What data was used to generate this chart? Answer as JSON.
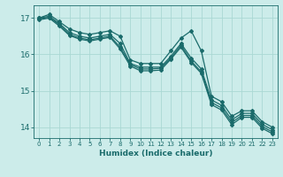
{
  "xlabel": "Humidex (Indice chaleur)",
  "ylabel": "",
  "background_color": "#ccecea",
  "grid_color": "#aad8d4",
  "line_color": "#1a6b6b",
  "marker": "D",
  "markersize": 2,
  "linewidth": 0.9,
  "ylim": [
    13.7,
    17.35
  ],
  "xlim": [
    -0.5,
    23.5
  ],
  "yticks": [
    14,
    15,
    16,
    17
  ],
  "xticks": [
    0,
    1,
    2,
    3,
    4,
    5,
    6,
    7,
    8,
    9,
    10,
    11,
    12,
    13,
    14,
    15,
    16,
    17,
    18,
    19,
    20,
    21,
    22,
    23
  ],
  "series": [
    [
      17.0,
      17.1,
      16.9,
      16.7,
      16.6,
      16.55,
      16.6,
      16.65,
      16.5,
      15.85,
      15.75,
      15.75,
      15.75,
      16.1,
      16.45,
      16.65,
      16.1,
      14.85,
      14.7,
      14.3,
      14.45,
      14.45,
      14.15,
      14.0
    ],
    [
      17.0,
      17.05,
      16.85,
      16.6,
      16.5,
      16.45,
      16.5,
      16.55,
      16.3,
      15.75,
      15.65,
      15.65,
      15.65,
      15.95,
      16.3,
      15.9,
      15.6,
      14.75,
      14.6,
      14.2,
      14.38,
      14.38,
      14.08,
      13.93
    ],
    [
      16.98,
      17.02,
      16.82,
      16.55,
      16.45,
      16.4,
      16.45,
      16.5,
      16.2,
      15.72,
      15.6,
      15.6,
      15.62,
      15.9,
      16.25,
      15.82,
      15.52,
      14.68,
      14.53,
      14.13,
      14.32,
      14.32,
      14.02,
      13.87
    ],
    [
      16.95,
      17.0,
      16.78,
      16.52,
      16.42,
      16.37,
      16.42,
      16.47,
      16.15,
      15.68,
      15.55,
      15.55,
      15.57,
      15.87,
      16.2,
      15.78,
      15.48,
      14.62,
      14.47,
      14.07,
      14.27,
      14.27,
      13.97,
      13.82
    ]
  ]
}
